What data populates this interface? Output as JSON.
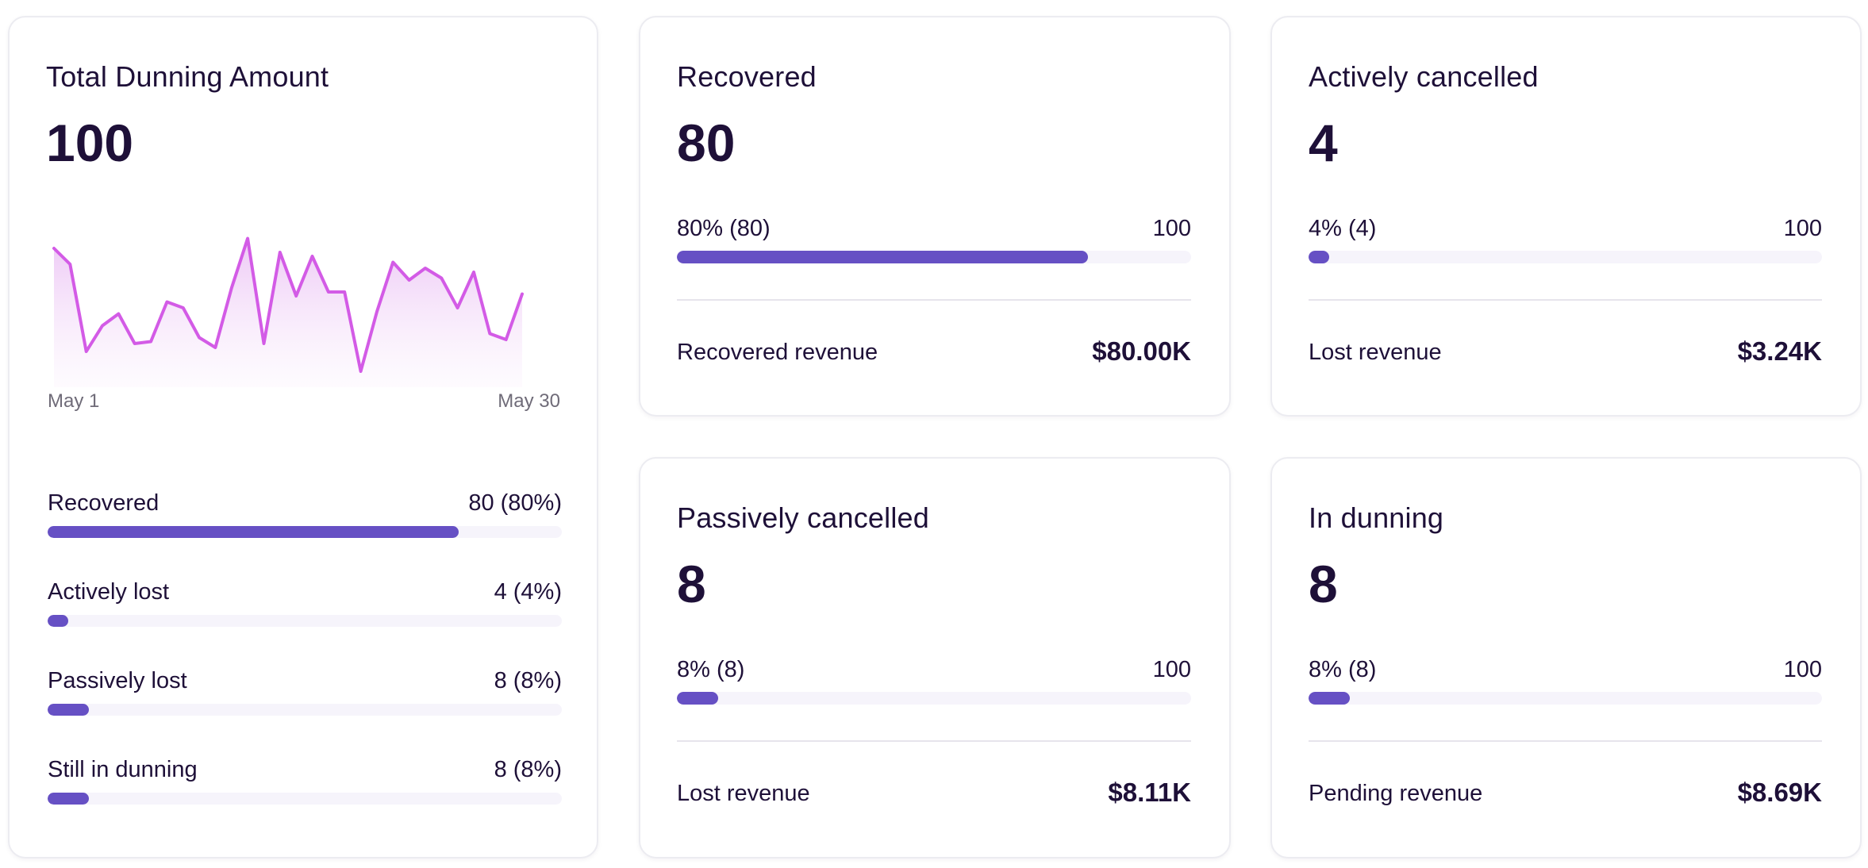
{
  "colors": {
    "accent": "#6650c4",
    "track": "#f6f4fb",
    "sparkline": "#d35be6",
    "text": "#1e1038"
  },
  "total_card": {
    "title": "Total Dunning Amount",
    "value": "100",
    "chart": {
      "start_label": "May 1",
      "end_label": "May 30"
    },
    "breakdown": [
      {
        "label": "Recovered",
        "value": "80 (80%)",
        "fraction": 0.8
      },
      {
        "label": "Actively lost",
        "value": "4 (4%)",
        "fraction": 0.04
      },
      {
        "label": "Passively lost",
        "value": "8 (8%)",
        "fraction": 0.08
      },
      {
        "label": "Still in dunning",
        "value": "8 (8%)",
        "fraction": 0.08
      }
    ]
  },
  "chart_data": {
    "type": "area",
    "x": [
      1,
      2,
      3,
      4,
      5,
      6,
      7,
      8,
      9,
      10,
      11,
      12,
      13,
      14,
      15,
      16,
      17,
      18,
      19,
      20,
      21,
      22,
      23,
      24,
      25,
      26,
      27,
      28,
      29,
      30
    ],
    "values": [
      70,
      62,
      18,
      31,
      37,
      22,
      23,
      43,
      40,
      25,
      20,
      50,
      75,
      22,
      68,
      46,
      66,
      48,
      48,
      8,
      38,
      63,
      54,
      60,
      55,
      40,
      58,
      27,
      24,
      47
    ],
    "ylim": [
      0,
      80
    ],
    "xlabel_start": "May 1",
    "xlabel_end": "May 30"
  },
  "metrics": {
    "recovered": {
      "title": "Recovered",
      "value": "80",
      "progress_label": "80% (80)",
      "progress_max": "100",
      "fraction": 0.8,
      "footer_label": "Recovered revenue",
      "footer_value": "$80.00K"
    },
    "active": {
      "title": "Actively cancelled",
      "value": "4",
      "progress_label": "4% (4)",
      "progress_max": "100",
      "fraction": 0.04,
      "footer_label": "Lost revenue",
      "footer_value": "$3.24K"
    },
    "passive": {
      "title": "Passively cancelled",
      "value": "8",
      "progress_label": "8% (8)",
      "progress_max": "100",
      "fraction": 0.08,
      "footer_label": "Lost revenue",
      "footer_value": "$8.11K"
    },
    "dunning": {
      "title": "In dunning",
      "value": "8",
      "progress_label": "8% (8)",
      "progress_max": "100",
      "fraction": 0.08,
      "footer_label": "Pending revenue",
      "footer_value": "$8.69K"
    }
  }
}
